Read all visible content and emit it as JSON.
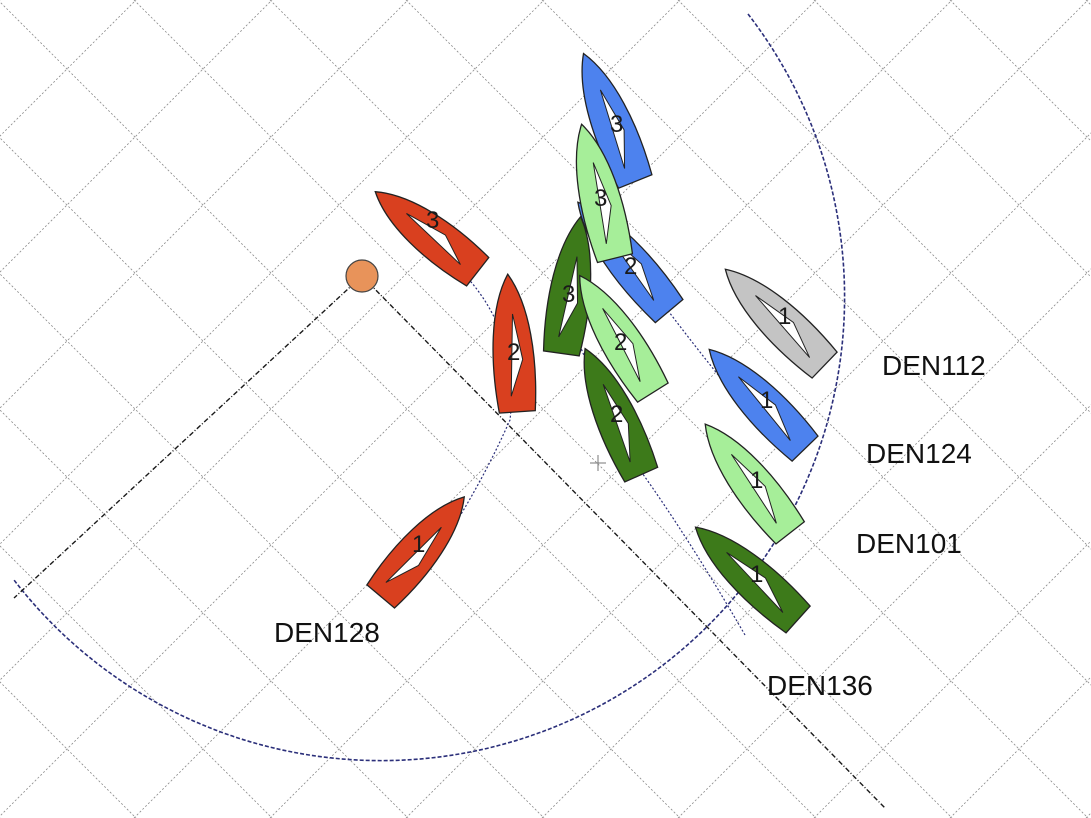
{
  "colors": {
    "background": "#ffffff",
    "grid": "#8a8a8a",
    "zone_circle": "#2b2f7a",
    "laylines": "#1a1a1a",
    "mark": "#e8935a",
    "red": "#d9401f",
    "blue": "#4d82ee",
    "light_green": "#a6ee99",
    "dark_green": "#3d7a1a",
    "gray": "#c4c4c4"
  },
  "mark": {
    "name": "mark-buoy"
  },
  "boats": [
    {
      "id": "DEN112",
      "label": "DEN112",
      "color": "gray",
      "positions": [
        {
          "label": "1"
        }
      ]
    },
    {
      "id": "DEN124",
      "label": "DEN124",
      "color": "blue",
      "positions": [
        {
          "label": "1"
        },
        {
          "label": "2"
        },
        {
          "label": "3"
        }
      ]
    },
    {
      "id": "DEN101",
      "label": "DEN101",
      "color": "light_green",
      "positions": [
        {
          "label": "1"
        },
        {
          "label": "2"
        },
        {
          "label": "3"
        }
      ]
    },
    {
      "id": "DEN136",
      "label": "DEN136",
      "color": "dark_green",
      "positions": [
        {
          "label": "1"
        },
        {
          "label": "2"
        },
        {
          "label": "3"
        }
      ]
    },
    {
      "id": "DEN128",
      "label": "DEN128",
      "color": "red",
      "positions": [
        {
          "label": "1"
        },
        {
          "label": "2"
        },
        {
          "label": "3"
        }
      ]
    }
  ]
}
